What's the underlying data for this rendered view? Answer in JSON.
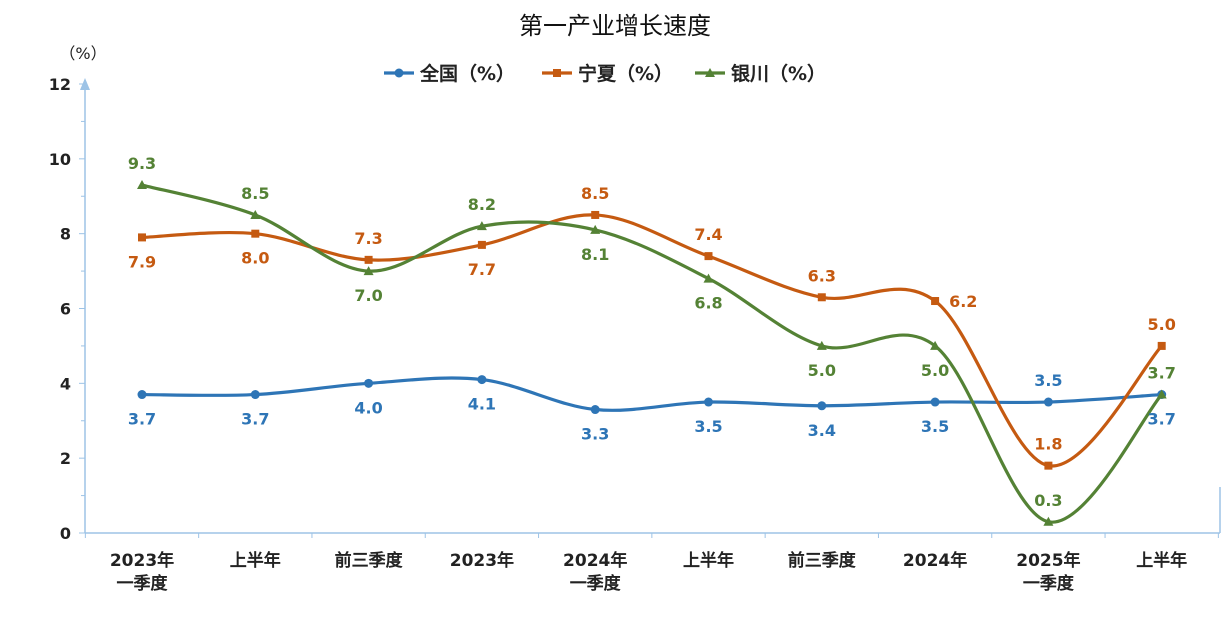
{
  "chart_data": {
    "type": "line",
    "title": "第一产业增长速度",
    "ylabel": "（%）",
    "ylim": [
      0,
      12
    ],
    "yticks": [
      "0",
      "2",
      "4",
      "6",
      "8",
      "10",
      "12"
    ],
    "categories": [
      [
        "2023年",
        "一季度"
      ],
      [
        "上半年"
      ],
      [
        "前三季度"
      ],
      [
        "2023年"
      ],
      [
        "2024年",
        "一季度"
      ],
      [
        "上半年"
      ],
      [
        "前三季度"
      ],
      [
        "2024年"
      ],
      [
        "2025年",
        "一季度"
      ],
      [
        "上半年"
      ]
    ],
    "legend_position": "top-center",
    "grid": false,
    "series": [
      {
        "name": "全国（%）",
        "color": "#2E75B6",
        "marker": "circle",
        "values": [
          3.7,
          3.7,
          4.0,
          4.1,
          3.3,
          3.5,
          3.4,
          3.5,
          3.5,
          3.7
        ],
        "labels": [
          "3.7",
          "3.7",
          "4.0",
          "4.1",
          "3.3",
          "3.5",
          "3.4",
          "3.5",
          "3.5",
          "3.7"
        ],
        "label_side": [
          "below",
          "below",
          "below",
          "below",
          "below",
          "below",
          "below",
          "below",
          "above",
          "below"
        ]
      },
      {
        "name": "宁夏（%）",
        "color": "#C55A11",
        "marker": "square",
        "values": [
          7.9,
          8.0,
          7.3,
          7.7,
          8.5,
          7.4,
          6.3,
          6.2,
          1.8,
          5.0
        ],
        "labels": [
          "7.9",
          "8.0",
          "7.3",
          "7.7",
          "8.5",
          "7.4",
          "6.3",
          "6.2",
          "1.8",
          "5.0"
        ],
        "label_side": [
          "below",
          "below",
          "above",
          "below",
          "above",
          "above",
          "above",
          "right",
          "above",
          "above"
        ]
      },
      {
        "name": "银川（%）",
        "color": "#548235",
        "marker": "triangle",
        "values": [
          9.3,
          8.5,
          7.0,
          8.2,
          8.1,
          6.8,
          5.0,
          5.0,
          0.3,
          3.7
        ],
        "labels": [
          "9.3",
          "8.5",
          "7.0",
          "8.2",
          "8.1",
          "6.8",
          "5.0",
          "5.0",
          "0.3",
          "3.7"
        ],
        "label_side": [
          "above",
          "above",
          "below",
          "above",
          "below",
          "below",
          "below",
          "below",
          "above",
          "above"
        ]
      }
    ]
  }
}
